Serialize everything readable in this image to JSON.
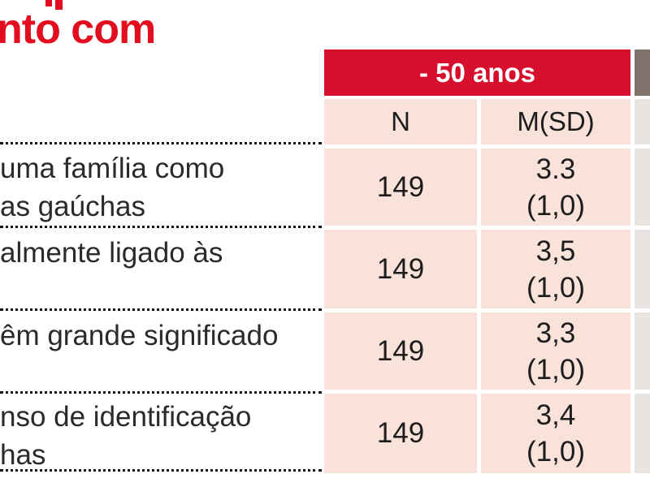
{
  "title": {
    "text": "nto com"
  },
  "table": {
    "group_header": "- 50 anos",
    "columns": {
      "n": "N",
      "msd": "M(SD)"
    },
    "rows": [
      {
        "label_lines": [
          "uma família como",
          "as gaúchas"
        ],
        "n": "149",
        "m": [
          "3.3",
          "(1,0)"
        ]
      },
      {
        "label_lines": [
          "almente ligado às"
        ],
        "n": "149",
        "m": [
          "3,5",
          "(1,0)"
        ]
      },
      {
        "label_lines": [
          "êm grande significado"
        ],
        "n": "149",
        "m": [
          "3,3",
          "(1,0)"
        ]
      },
      {
        "label_lines": [
          "nso de identificação",
          "has"
        ],
        "n": "149",
        "m": [
          "3,4",
          "(1,0)"
        ]
      }
    ],
    "colors": {
      "title_red": "#e20d1e",
      "group_header_bg": "#d60f2c",
      "group_header_text": "#ffffff",
      "partial_header_bg": "#7f736b",
      "cell_pink": "#f9e2da",
      "cell_gray": "#e9e4e2"
    }
  }
}
